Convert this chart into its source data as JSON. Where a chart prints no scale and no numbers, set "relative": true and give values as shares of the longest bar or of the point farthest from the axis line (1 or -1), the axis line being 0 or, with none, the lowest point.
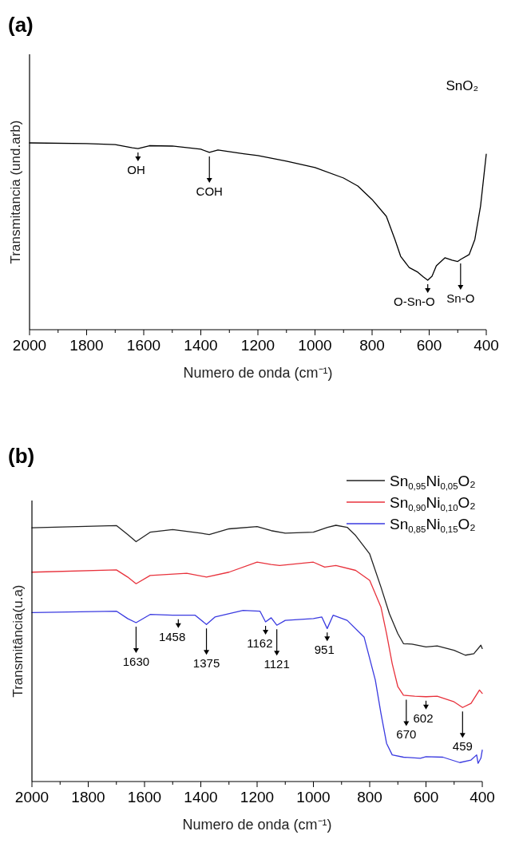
{
  "chart_data": [
    {
      "type": "line",
      "title": "(a)",
      "xlabel": "Numero de onda (cm⁻¹)",
      "ylabel": "Transmitancia (und.arb)",
      "relative": true,
      "tick_labels": "x",
      "grid": false,
      "legend": false,
      "xlim": [
        2000,
        400
      ],
      "xticks": [
        2000,
        {
          "value": 1900,
          "label": null
        },
        1800,
        {
          "value": 1700,
          "label": null
        },
        1600,
        {
          "value": 1500,
          "label": null
        },
        1400,
        {
          "value": 1300,
          "label": null
        },
        1200,
        {
          "value": 1100,
          "label": null
        },
        1000,
        {
          "value": 900,
          "label": null
        },
        800,
        {
          "value": 700,
          "label": null
        },
        600,
        {
          "value": 500,
          "label": null
        },
        400
      ],
      "series": [
        {
          "color": "#000000",
          "x": [
            2000,
            1800,
            1700,
            1640,
            1620,
            1580,
            1500,
            1400,
            1370,
            1340,
            1250,
            1200,
            1100,
            1000,
            900,
            850,
            800,
            750,
            720,
            700,
            670,
            640,
            620,
            605,
            590,
            575,
            545,
            520,
            500,
            490,
            460,
            440,
            420,
            400
          ],
          "values": [
            1.0,
            0.996,
            0.991,
            0.974,
            0.97,
            0.985,
            0.983,
            0.966,
            0.949,
            0.962,
            0.942,
            0.932,
            0.902,
            0.868,
            0.812,
            0.769,
            0.697,
            0.607,
            0.483,
            0.393,
            0.333,
            0.308,
            0.282,
            0.265,
            0.286,
            0.342,
            0.385,
            0.372,
            0.365,
            0.376,
            0.402,
            0.483,
            0.662,
            0.94
          ]
        }
      ],
      "annotations": [
        "SnO₂",
        {
          "text": "OH",
          "x": 1620,
          "y": 0.97
        },
        {
          "text": "COH",
          "x": 1370,
          "y": 0.949
        },
        {
          "text": "O-Sn-O",
          "x": 605,
          "y": 0.265
        },
        {
          "text": "Sn-O",
          "x": 490,
          "y": 0.376
        }
      ]
    },
    {
      "type": "line",
      "title": "(b)",
      "xlabel": "Numero de onda (cm⁻¹)",
      "ylabel": "Transmitância(u.a)",
      "relative": true,
      "tick_labels": "x",
      "grid": false,
      "legend": "top right",
      "xlim": [
        2000,
        400
      ],
      "xticks": [
        2000,
        {
          "value": 1900,
          "label": null
        },
        1800,
        {
          "value": 1700,
          "label": null
        },
        1600,
        {
          "value": 1500,
          "label": null
        },
        1400,
        {
          "value": 1300,
          "label": null
        },
        1200,
        {
          "value": 1100,
          "label": null
        },
        1000,
        {
          "value": 900,
          "label": null
        },
        800,
        {
          "value": 700,
          "label": null
        },
        600,
        {
          "value": 500,
          "label": null
        },
        400
      ],
      "series": [
        {
          "name": "Sn$_{0,95}$Ni$_{0,05}$O₂",
          "color": "#222222",
          "x": [
            2000,
            1700,
            1660,
            1630,
            1580,
            1500,
            1400,
            1370,
            1300,
            1200,
            1150,
            1100,
            1000,
            950,
            920,
            880,
            850,
            800,
            760,
            730,
            700,
            680,
            650,
            600,
            560,
            500,
            460,
            430,
            405,
            400
          ],
          "values": [
            0.99,
            0.999,
            0.964,
            0.936,
            0.973,
            0.983,
            0.969,
            0.964,
            0.986,
            0.995,
            0.979,
            0.969,
            0.973,
            0.992,
            1.0,
            0.992,
            0.96,
            0.888,
            0.759,
            0.655,
            0.577,
            0.538,
            0.536,
            0.525,
            0.529,
            0.512,
            0.493,
            0.499,
            0.532,
            0.519
          ]
        },
        {
          "name": "Sn$_{0,90}$Ni$_{0,10}$O₂",
          "color": "#e8323c",
          "x": [
            2000,
            1700,
            1660,
            1630,
            1580,
            1450,
            1380,
            1300,
            1200,
            1150,
            1120,
            1000,
            960,
            920,
            850,
            800,
            760,
            740,
            720,
            700,
            680,
            640,
            600,
            560,
            500,
            470,
            440,
            410,
            400
          ],
          "values": [
            0.817,
            0.826,
            0.798,
            0.772,
            0.804,
            0.813,
            0.798,
            0.817,
            0.856,
            0.847,
            0.843,
            0.856,
            0.837,
            0.843,
            0.824,
            0.785,
            0.681,
            0.577,
            0.46,
            0.37,
            0.337,
            0.333,
            0.331,
            0.333,
            0.311,
            0.289,
            0.305,
            0.357,
            0.344
          ]
        },
        {
          "name": "Sn$_{0,85}$Ni$_{0,15}$O₂",
          "color": "#3a3ae0",
          "x": [
            2000,
            1700,
            1660,
            1630,
            1580,
            1500,
            1420,
            1380,
            1350,
            1250,
            1190,
            1170,
            1150,
            1130,
            1100,
            1000,
            970,
            951,
            930,
            880,
            820,
            780,
            760,
            740,
            720,
            680,
            620,
            600,
            540,
            480,
            440,
            420,
            415,
            405,
            400
          ],
          "values": [
            0.659,
            0.665,
            0.636,
            0.62,
            0.652,
            0.649,
            0.649,
            0.613,
            0.642,
            0.668,
            0.665,
            0.623,
            0.639,
            0.61,
            0.629,
            0.636,
            0.642,
            0.597,
            0.649,
            0.629,
            0.564,
            0.396,
            0.266,
            0.149,
            0.104,
            0.095,
            0.091,
            0.097,
            0.095,
            0.074,
            0.084,
            0.104,
            0.071,
            0.091,
            0.123
          ]
        }
      ],
      "annotations": [
        {
          "text": "1630",
          "x": 1630,
          "y": 0.62
        },
        {
          "text": "1458",
          "x": 1480,
          "y": 0.649
        },
        {
          "text": "1375",
          "x": 1380,
          "y": 0.613
        },
        {
          "text": "1162",
          "x": 1170,
          "y": 0.623
        },
        {
          "text": "1121",
          "x": 1130,
          "y": 0.61
        },
        {
          "text": "951",
          "x": 951,
          "y": 0.597
        },
        {
          "text": "670",
          "x": 670,
          "y": 0.335
        },
        {
          "text": "602",
          "x": 600,
          "y": 0.331
        },
        {
          "text": "459",
          "x": 470,
          "y": 0.289
        }
      ]
    }
  ]
}
